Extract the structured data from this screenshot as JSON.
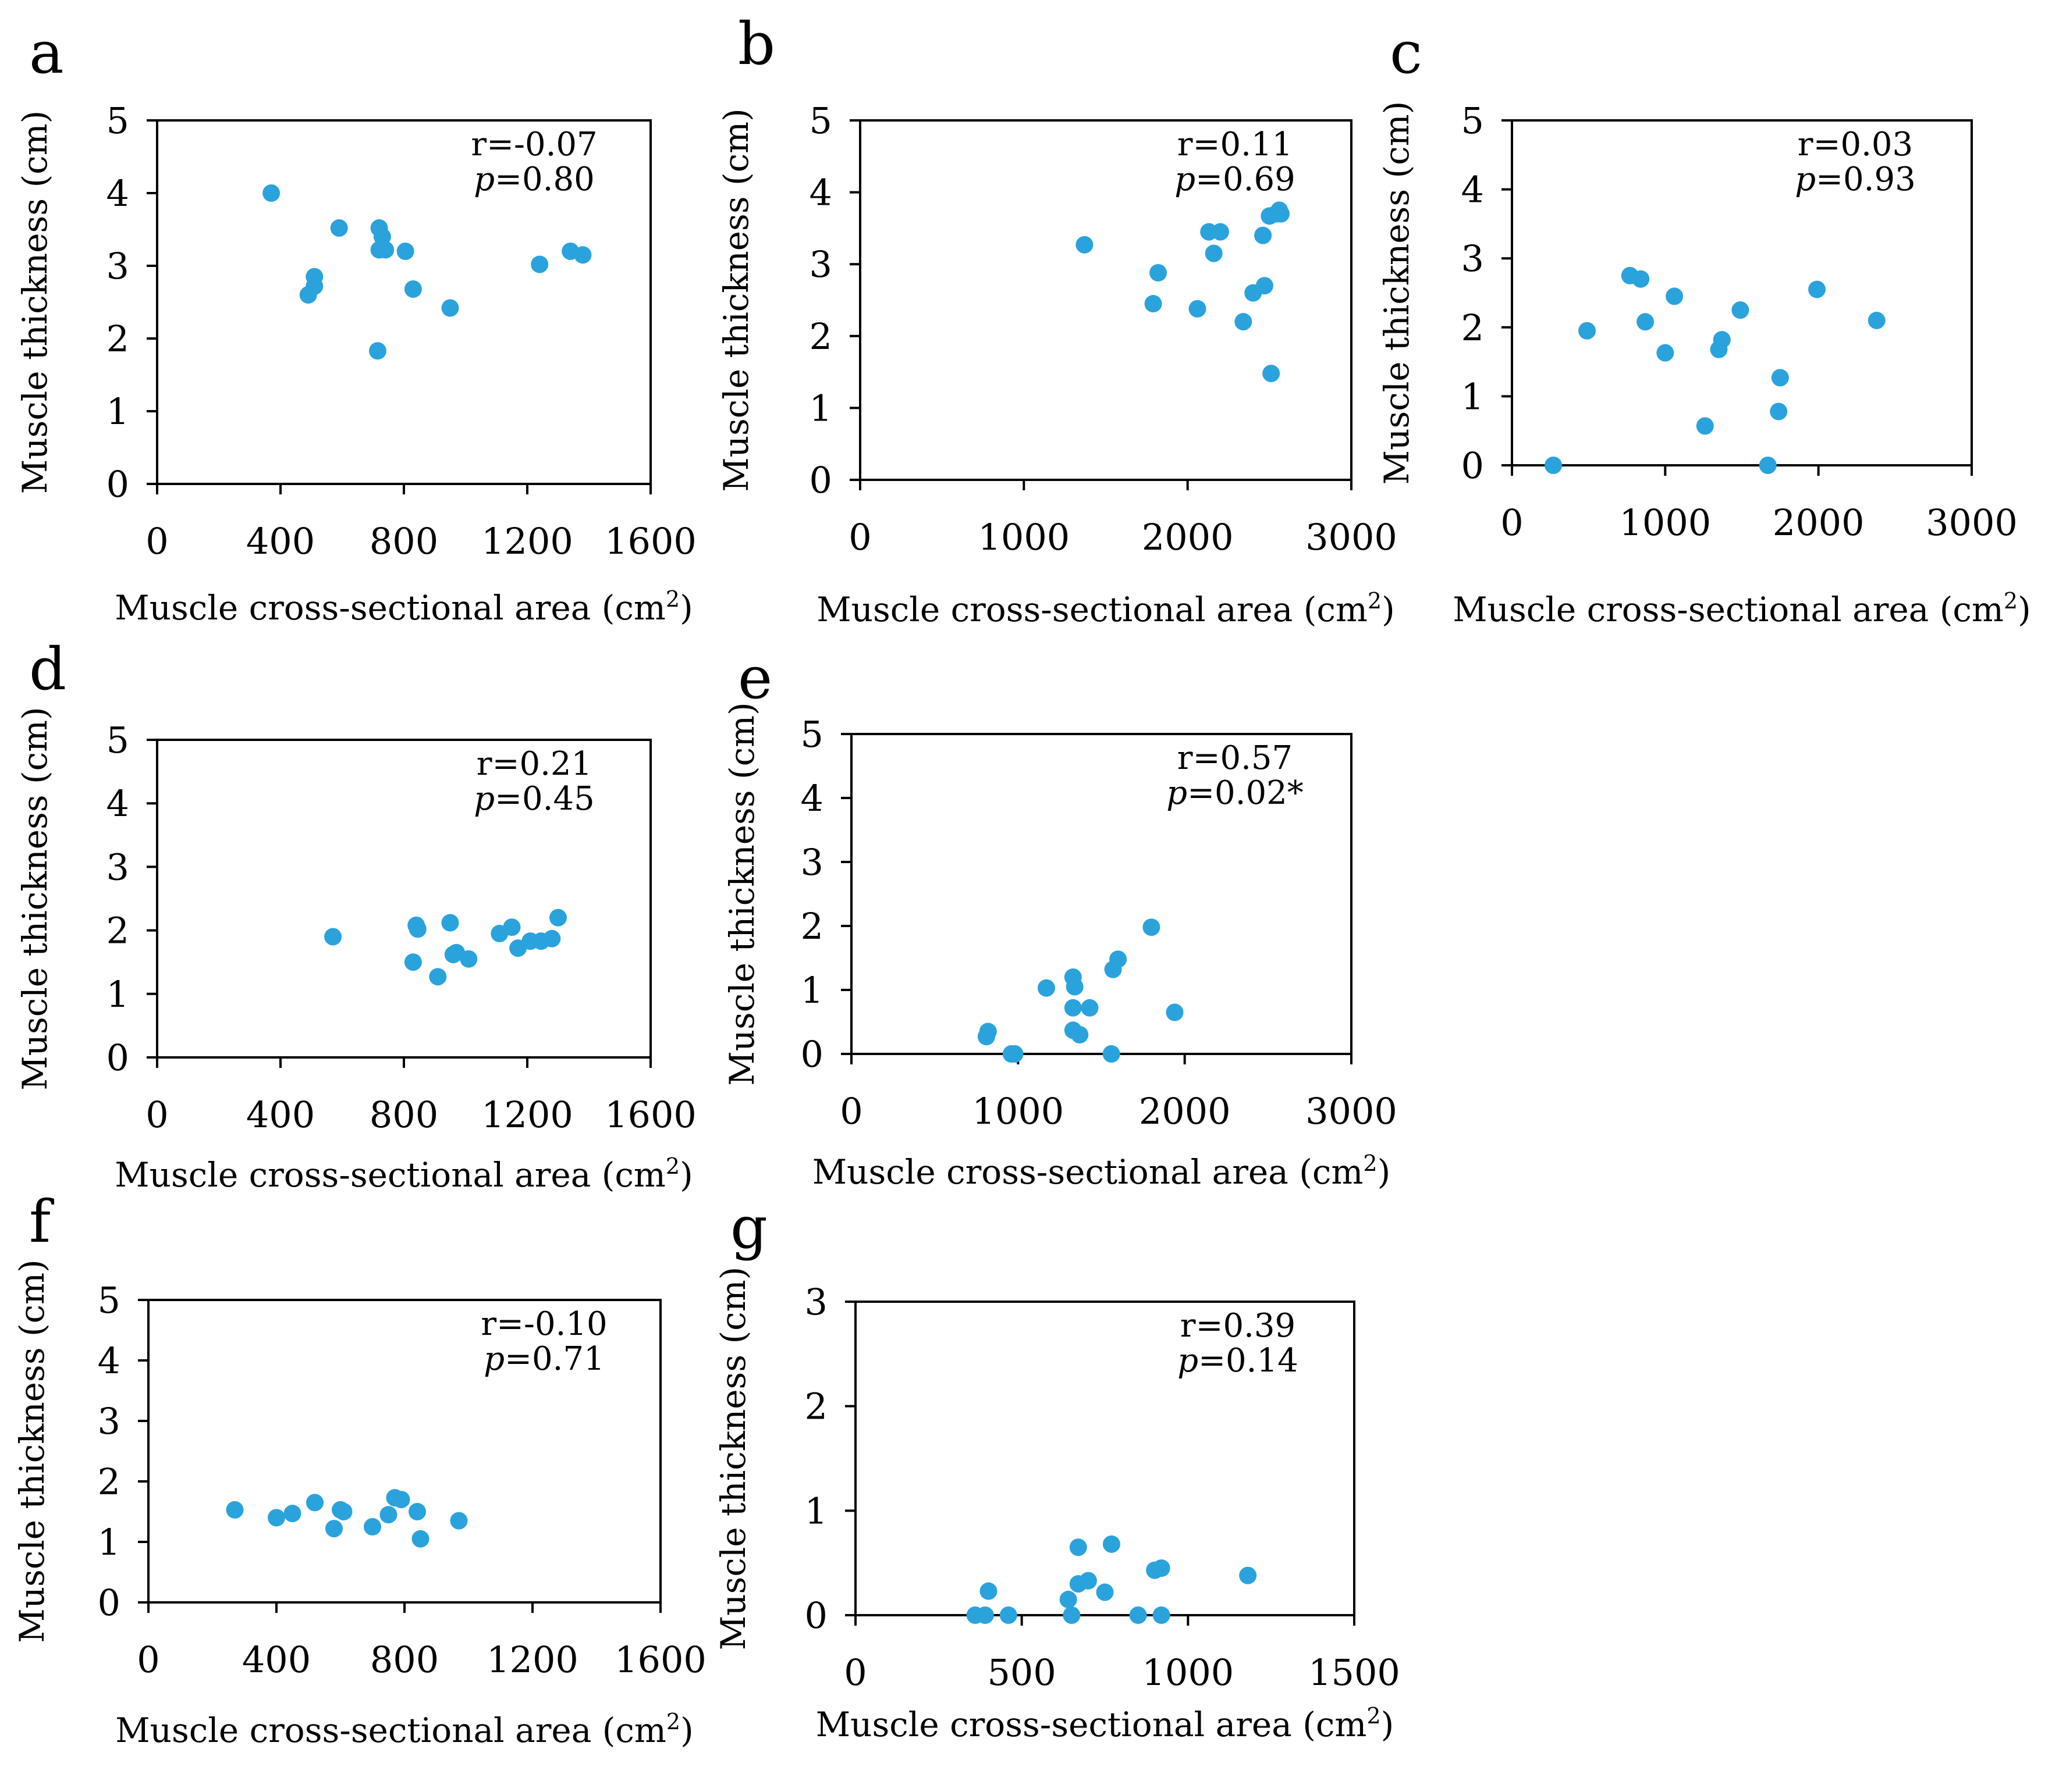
{
  "marker_color": "#2aa3dd",
  "chart_data": [
    {
      "panel": "a",
      "type": "scatter",
      "xlabel": "Muscle cross-sectional area (cm",
      "xlabel_sup": "2",
      "xlabel_end": ")",
      "ylabel": "Muscle thickness (cm)",
      "xlim": [
        0,
        1600
      ],
      "ylim": [
        0,
        5
      ],
      "xticks": [
        "0",
        "400",
        "800",
        "1200",
        "1600"
      ],
      "yticks": [
        "0",
        "1",
        "2",
        "3",
        "4",
        "5"
      ],
      "r_text": "r=-0.07",
      "p_label": "p",
      "p_text": "=0.80",
      "points": [
        [
          370,
          4.0
        ],
        [
          590,
          3.52
        ],
        [
          720,
          3.52
        ],
        [
          730,
          3.4
        ],
        [
          720,
          3.22
        ],
        [
          740,
          3.22
        ],
        [
          805,
          3.2
        ],
        [
          830,
          2.68
        ],
        [
          510,
          2.85
        ],
        [
          510,
          2.72
        ],
        [
          490,
          2.6
        ],
        [
          950,
          2.42
        ],
        [
          715,
          1.83
        ],
        [
          1240,
          3.02
        ],
        [
          1340,
          3.2
        ],
        [
          1380,
          3.15
        ]
      ]
    },
    {
      "panel": "b",
      "type": "scatter",
      "xlabel": "Muscle cross-sectional area (cm",
      "xlabel_sup": "2",
      "xlabel_end": ")",
      "ylabel": "Muscle thickness (cm)",
      "xlim": [
        0,
        3000
      ],
      "ylim": [
        0,
        5
      ],
      "xticks": [
        "0",
        "1000",
        "2000",
        "3000"
      ],
      "yticks": [
        "0",
        "1",
        "2",
        "3",
        "4",
        "5"
      ],
      "r_text": "r=0.11",
      "p_label": "p",
      "p_text": "=0.69",
      "points": [
        [
          1370,
          3.27
        ],
        [
          1790,
          2.45
        ],
        [
          1820,
          2.88
        ],
        [
          2060,
          2.38
        ],
        [
          2130,
          3.45
        ],
        [
          2200,
          3.45
        ],
        [
          2160,
          3.15
        ],
        [
          2340,
          2.2
        ],
        [
          2400,
          2.6
        ],
        [
          2460,
          3.4
        ],
        [
          2470,
          2.7
        ],
        [
          2500,
          3.67
        ],
        [
          2540,
          3.7
        ],
        [
          2560,
          3.75
        ],
        [
          2570,
          3.7
        ],
        [
          2510,
          1.48
        ]
      ]
    },
    {
      "panel": "c",
      "type": "scatter",
      "xlabel": "Muscle cross-sectional area (cm",
      "xlabel_sup": "2",
      "xlabel_end": ")",
      "ylabel": "Muscle thickness (cm)",
      "xlim": [
        0,
        3000
      ],
      "ylim": [
        0,
        5
      ],
      "xticks": [
        "0",
        "1000",
        "2000",
        "3000"
      ],
      "yticks": [
        "0",
        "1",
        "2",
        "3",
        "4",
        "5"
      ],
      "r_text": "r=0.03",
      "p_label": "p",
      "p_text": "=0.93",
      "points": [
        [
          270,
          0.0
        ],
        [
          490,
          1.95
        ],
        [
          770,
          2.75
        ],
        [
          840,
          2.7
        ],
        [
          870,
          2.08
        ],
        [
          1000,
          1.63
        ],
        [
          1060,
          2.45
        ],
        [
          1260,
          0.57
        ],
        [
          1350,
          1.68
        ],
        [
          1370,
          1.82
        ],
        [
          1490,
          2.25
        ],
        [
          1670,
          0.0
        ],
        [
          1750,
          1.27
        ],
        [
          1740,
          0.78
        ],
        [
          1990,
          2.55
        ],
        [
          2380,
          2.1
        ]
      ]
    },
    {
      "panel": "d",
      "type": "scatter",
      "xlabel": "Muscle cross-sectional area (cm",
      "xlabel_sup": "2",
      "xlabel_end": ")",
      "ylabel": "Muscle thickness (cm)",
      "xlim": [
        0,
        1600
      ],
      "ylim": [
        0,
        5
      ],
      "xticks": [
        "0",
        "400",
        "800",
        "1200",
        "1600"
      ],
      "yticks": [
        "0",
        "1",
        "2",
        "3",
        "4",
        "5"
      ],
      "r_text": "r=0.21",
      "p_label": "p",
      "p_text": "=0.45",
      "points": [
        [
          570,
          1.9
        ],
        [
          830,
          1.5
        ],
        [
          840,
          2.08
        ],
        [
          845,
          2.02
        ],
        [
          910,
          1.27
        ],
        [
          950,
          2.12
        ],
        [
          960,
          1.62
        ],
        [
          970,
          1.65
        ],
        [
          1010,
          1.55
        ],
        [
          1110,
          1.95
        ],
        [
          1150,
          2.05
        ],
        [
          1170,
          1.72
        ],
        [
          1210,
          1.83
        ],
        [
          1245,
          1.83
        ],
        [
          1280,
          1.87
        ],
        [
          1300,
          2.2
        ]
      ]
    },
    {
      "panel": "e",
      "type": "scatter",
      "xlabel": "Muscle cross-sectional area (cm",
      "xlabel_sup": "2",
      "xlabel_end": ")",
      "ylabel": "Muscle thickness (cm)",
      "xlim": [
        0,
        3000
      ],
      "ylim": [
        0,
        5
      ],
      "xticks": [
        "0",
        "1000",
        "2000",
        "3000"
      ],
      "yticks": [
        "0",
        "1",
        "2",
        "3",
        "4",
        "5"
      ],
      "r_text": "r=0.57",
      "p_label": "p",
      "p_text": "=0.02*",
      "points": [
        [
          810,
          0.27
        ],
        [
          820,
          0.35
        ],
        [
          960,
          0.0
        ],
        [
          980,
          0.0
        ],
        [
          1170,
          1.03
        ],
        [
          1330,
          1.2
        ],
        [
          1340,
          1.05
        ],
        [
          1330,
          0.72
        ],
        [
          1330,
          0.37
        ],
        [
          1370,
          0.3
        ],
        [
          1430,
          0.72
        ],
        [
          1560,
          0.0
        ],
        [
          1570,
          1.32
        ],
        [
          1600,
          1.48
        ],
        [
          1800,
          1.98
        ],
        [
          1940,
          0.65
        ]
      ]
    },
    {
      "panel": "f",
      "type": "scatter",
      "xlabel": "Muscle cross-sectional area (cm",
      "xlabel_sup": "2",
      "xlabel_end": ")",
      "ylabel": "Muscle thickness (cm)",
      "xlim": [
        0,
        1600
      ],
      "ylim": [
        0,
        5
      ],
      "xticks": [
        "0",
        "400",
        "800",
        "1200",
        "1600"
      ],
      "yticks": [
        "0",
        "1",
        "2",
        "3",
        "4",
        "5"
      ],
      "r_text": "r=-0.10",
      "p_label": "p",
      "p_text": "=0.71",
      "points": [
        [
          270,
          1.53
        ],
        [
          400,
          1.4
        ],
        [
          450,
          1.47
        ],
        [
          520,
          1.65
        ],
        [
          580,
          1.22
        ],
        [
          600,
          1.53
        ],
        [
          610,
          1.5
        ],
        [
          700,
          1.25
        ],
        [
          750,
          1.45
        ],
        [
          770,
          1.73
        ],
        [
          790,
          1.7
        ],
        [
          840,
          1.5
        ],
        [
          850,
          1.05
        ],
        [
          970,
          1.35
        ]
      ]
    },
    {
      "panel": "g",
      "type": "scatter",
      "xlabel": "Muscle cross-sectional area (cm",
      "xlabel_sup": "2",
      "xlabel_end": ")",
      "ylabel": "Muscle thickness (cm)",
      "xlim": [
        0,
        1500
      ],
      "ylim": [
        0,
        3
      ],
      "xticks": [
        "0",
        "500",
        "1000",
        "1500"
      ],
      "yticks": [
        "0",
        "1",
        "2",
        "3"
      ],
      "r_text": "r=0.39",
      "p_label": "p",
      "p_text": "=0.14",
      "points": [
        [
          360,
          0.0
        ],
        [
          390,
          0.0
        ],
        [
          400,
          0.23
        ],
        [
          460,
          0.0
        ],
        [
          640,
          0.15
        ],
        [
          650,
          0.0
        ],
        [
          670,
          0.3
        ],
        [
          670,
          0.65
        ],
        [
          700,
          0.33
        ],
        [
          750,
          0.22
        ],
        [
          770,
          0.68
        ],
        [
          850,
          0.0
        ],
        [
          900,
          0.43
        ],
        [
          920,
          0.45
        ],
        [
          920,
          0.0
        ],
        [
          1180,
          0.38
        ]
      ]
    }
  ]
}
